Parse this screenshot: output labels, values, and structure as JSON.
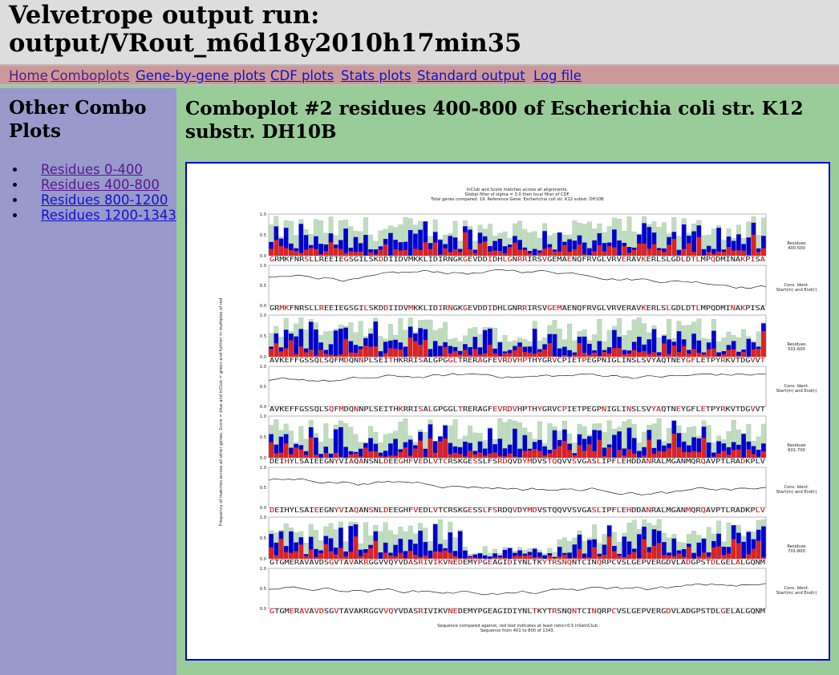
{
  "header": {
    "title_line1": "Velvetrope output run:",
    "title_line2": "output/VRout_m6d18y2010h17min35"
  },
  "nav": {
    "items": [
      {
        "label": "Home",
        "visited": true
      },
      {
        "label": "Comboplots",
        "visited": true
      },
      {
        "label": "Gene-by-gene plots",
        "visited": false
      },
      {
        "label": "CDF plots",
        "visited": false
      },
      {
        "label": "Stats plots",
        "visited": false
      },
      {
        "label": "Standard output",
        "visited": false
      },
      {
        "label": "Log file",
        "visited": false
      }
    ]
  },
  "sidebar": {
    "title": "Other Combo Plots",
    "links": [
      {
        "label": "Residues 0-400",
        "visited": true
      },
      {
        "label": "Residues 400-800",
        "visited": true
      },
      {
        "label": "Residues 800-1200",
        "visited": false
      },
      {
        "label": "Residues 1200-1343",
        "visited": false
      }
    ]
  },
  "main": {
    "title": "Comboplot #2 residues 400-800 of Escherichia coli str. K12 substr. DH10B"
  },
  "plot": {
    "title_lines": [
      "InClub and Score matches across all alignments.",
      "Global filter of sigma = 3.0 then local filter of CDF.",
      "Total genes compared: 19. Reference Gene: Escherichia coli str. K12 substr. DH10B"
    ],
    "ylabel": "Frequency of matches across all other genes. Score = blue and inClub = green and further in multiples of red",
    "xlabel_lines": [
      "Sequence compared against, red text indicates at least ratio>0.5 InSeInClub",
      "Sequence from 401 to 800 of 1343."
    ],
    "colors": {
      "green": "#bfdcbf",
      "blue": "#0000cc",
      "red": "#dd2222",
      "seq_red": "#cc0000"
    },
    "panels": [
      {
        "residue_label_1": "Residues",
        "residue_label_2": "400-500",
        "line_label_1": "Cons. Ident.",
        "line_label_2": "Start(m) and End(r)",
        "sequence": "GRMKFNRSLLREEIEGSGILSKDDIIDVMKKLIDIRNGKGEVDDIDHLGNRRIRSVGEMAENQFRVGLVRVERAVKERLSLGDLDTLMPQDMINAKPISA"
      },
      {
        "residue_label_1": "Residues",
        "residue_label_2": "501-600",
        "line_label_1": "Cons. Ident.",
        "line_label_2": "Start(m) and End(r)",
        "sequence": "AVKEFFGSSQLSQFMDQNNPLSEITHKRRISALGPGGLTRERAGFEVRDVHPTHYGRVCPIETPEGPNIGLINSLSVYAQTNEYGFLETPYRKVTDGVVT"
      },
      {
        "residue_label_1": "Residues",
        "residue_label_2": "601-700",
        "line_label_1": "Cons. Ident.",
        "line_label_2": "Start(m) and End(r)",
        "sequence": "DEIHYLSAIEEGNYVIAQANSNLDEEGHFVEDLVTCRSKGESSLFSRDQVDYMDVSTQQVVSVGASLIPFLEHDDANRALMGANMQRQAVPTLRADKPLV"
      },
      {
        "residue_label_1": "Residues",
        "residue_label_2": "701-800",
        "line_label_1": "Cons. Ident.",
        "line_label_2": "Start(m) and End(r)",
        "sequence": "GTGMERAVAVDSGVTAVAKRGGVVQYVDASRIVIKVNEDEMYPGEAGIDIYNLTKYTRSNQNTCINQRPCVSLGEPVERGDVLADGPSTDLGELALGQNM"
      }
    ],
    "bar_axis_ticks": [
      "1.0",
      "0.5",
      "0.0"
    ],
    "line_axis_ticks": [
      "1.0",
      "0.5",
      "0.0"
    ]
  }
}
